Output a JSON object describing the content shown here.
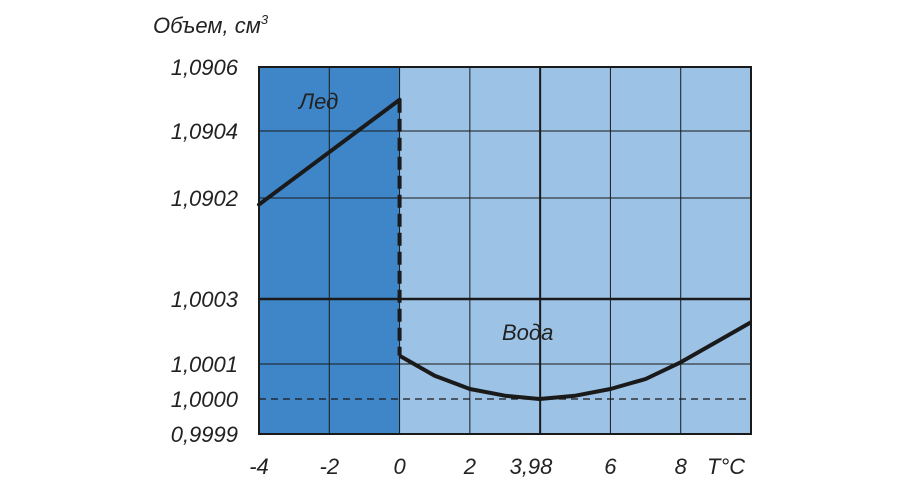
{
  "chart_data": {
    "type": "line",
    "ylabel": "Объем, см",
    "ylabel_sup": "3",
    "xlabel": "T°C",
    "x_ticks": [
      {
        "label": "-4",
        "value": -4
      },
      {
        "label": "-2",
        "value": -2
      },
      {
        "label": "0",
        "value": 0
      },
      {
        "label": "2",
        "value": 2
      },
      {
        "label": "3,98",
        "value": 3.98
      },
      {
        "label": "6",
        "value": 6
      },
      {
        "label": "8",
        "value": 8
      }
    ],
    "y_ticks": [
      "1,0906",
      "1,0904",
      "1,0902",
      "1,0003",
      "1,0001",
      "1,0000",
      "0,9999"
    ],
    "xlim": [
      -4,
      10
    ],
    "series": [
      {
        "name": "Лед",
        "x": [
          -4,
          0
        ],
        "y": [
          1.09018,
          1.0905
        ]
      },
      {
        "name": "Вода",
        "x": [
          0,
          1,
          2,
          3,
          3.98,
          5,
          6,
          7,
          8,
          9,
          10
        ],
        "y": [
          1.00013,
          1.00007,
          1.00003,
          1.00001,
          1.0,
          1.00001,
          1.00003,
          1.00006,
          1.00011,
          1.00017,
          1.00023
        ]
      }
    ],
    "transition": {
      "x": 0,
      "from": 1.0905,
      "to": 1.00013,
      "style": "dashed"
    },
    "reference_line": {
      "y": 1.0,
      "style": "dashed"
    },
    "regions": [
      {
        "label": "Лед",
        "x_range": [
          -4,
          0
        ],
        "color": "#3f86c8"
      },
      {
        "label": "Вода",
        "x_range": [
          0,
          10
        ],
        "color": "#9cc2e6"
      }
    ],
    "grid": true,
    "y_axis_broken": true
  }
}
